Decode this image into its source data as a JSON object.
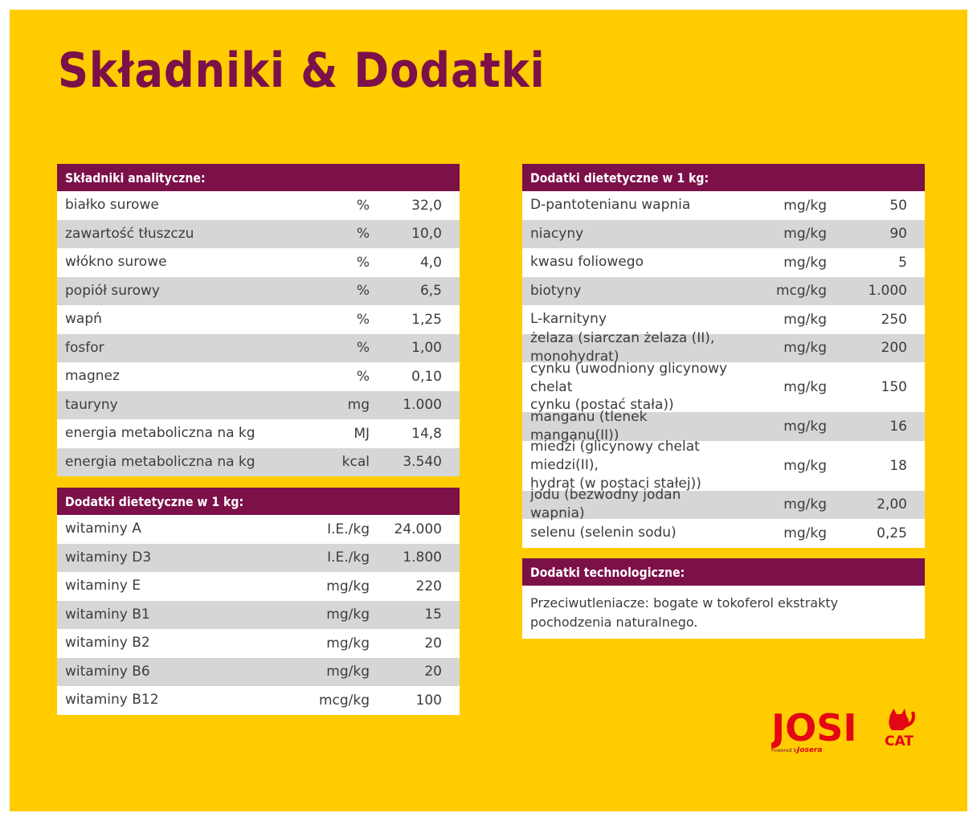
{
  "title": "Składniki & Dodatki",
  "analytic": {
    "header": "Składniki analityczne:",
    "rows": [
      {
        "name": "białko surowe",
        "unit": "%",
        "value": "32,0"
      },
      {
        "name": "zawartość tłuszczu",
        "unit": "%",
        "value": "10,0"
      },
      {
        "name": "włókno surowe",
        "unit": "%",
        "value": "4,0"
      },
      {
        "name": "popiół surowy",
        "unit": "%",
        "value": "6,5"
      },
      {
        "name": "wapń",
        "unit": "%",
        "value": "1,25"
      },
      {
        "name": "fosfor",
        "unit": "%",
        "value": "1,00"
      },
      {
        "name": "magnez",
        "unit": "%",
        "value": "0,10"
      },
      {
        "name": "tauryny",
        "unit": "mg",
        "value": "1.000"
      },
      {
        "name": "energia metaboliczna na kg",
        "unit": "MJ",
        "value": "14,8"
      },
      {
        "name": "energia metaboliczna na kg",
        "unit": "kcal",
        "value": "3.540"
      }
    ]
  },
  "vitamins": {
    "header": "Dodatki dietetyczne w 1 kg:",
    "rows": [
      {
        "name": "witaminy A",
        "unit": "I.E./kg",
        "value": "24.000"
      },
      {
        "name": "witaminy D3",
        "unit": "I.E./kg",
        "value": "1.800"
      },
      {
        "name": "witaminy E",
        "unit": "mg/kg",
        "value": "220"
      },
      {
        "name": "witaminy B1",
        "unit": "mg/kg",
        "value": "15"
      },
      {
        "name": "witaminy B2",
        "unit": "mg/kg",
        "value": "20"
      },
      {
        "name": "witaminy B6",
        "unit": "mg/kg",
        "value": "20"
      },
      {
        "name": "witaminy B12",
        "unit": "mcg/kg",
        "value": "100"
      }
    ]
  },
  "dietary": {
    "header": "Dodatki dietetyczne w 1 kg:",
    "rows": [
      {
        "name": "D-pantotenianu wapnia",
        "unit": "mg/kg",
        "value": "50"
      },
      {
        "name": "niacyny",
        "unit": "mg/kg",
        "value": "90"
      },
      {
        "name": "kwasu foliowego",
        "unit": "mg/kg",
        "value": "5"
      },
      {
        "name": "biotyny",
        "unit": "mcg/kg",
        "value": "1.000"
      },
      {
        "name": "L-karnityny",
        "unit": "mg/kg",
        "value": "250"
      },
      {
        "name": "żelaza (siarczan żelaza (II), monohydrat)",
        "unit": "mg/kg",
        "value": "200"
      },
      {
        "name": "cynku (uwodniony glicynowy chelat\ncynku (postać stała))",
        "unit": "mg/kg",
        "value": "150",
        "tall": true
      },
      {
        "name": "manganu (tlenek manganu(II))",
        "unit": "mg/kg",
        "value": "16"
      },
      {
        "name": "miedzi (glicynowy chelat miedzi(II),\nhydrat (w postaci stałej))",
        "unit": "mg/kg",
        "value": "18",
        "tall": true
      },
      {
        "name": "jodu (bezwodny jodan wapnia)",
        "unit": "mg/kg",
        "value": "2,00"
      },
      {
        "name": "selenu (selenin sodu)",
        "unit": "mg/kg",
        "value": "0,25"
      }
    ]
  },
  "tech": {
    "header": "Dodatki technologiczne:",
    "text": "Przeciwutleniacze: bogate w tokoferol ekstrakty\npochodzenia naturalnego."
  },
  "logo": {
    "brand": "JOSI",
    "sub": "CAT",
    "powered": "Powered by",
    "maker": "Josera",
    "colors": {
      "red": "#e30613",
      "panel": "#ffcc00",
      "plum": "#7c1049"
    }
  }
}
